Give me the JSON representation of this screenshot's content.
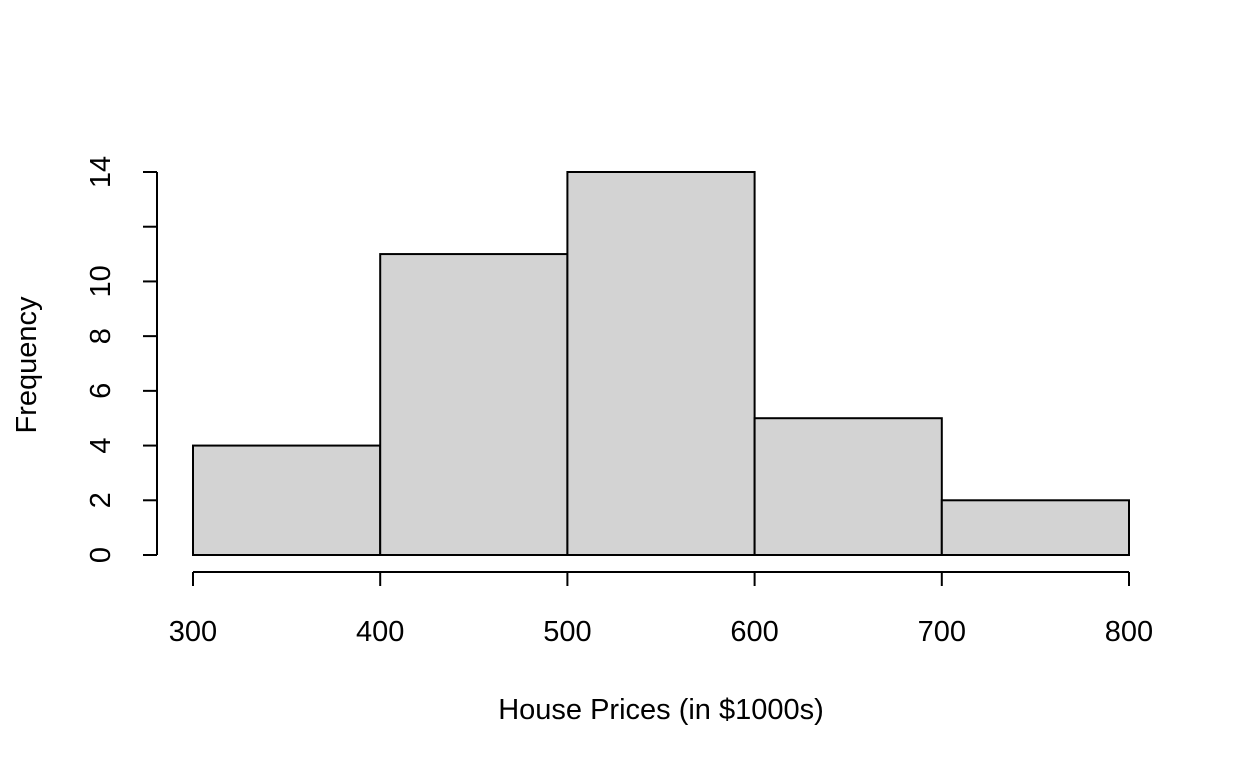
{
  "chart_data": {
    "type": "bar",
    "subtype": "histogram",
    "bins": [
      {
        "from": 300,
        "to": 400,
        "count": 4
      },
      {
        "from": 400,
        "to": 500,
        "count": 11
      },
      {
        "from": 500,
        "to": 600,
        "count": 14
      },
      {
        "from": 600,
        "to": 700,
        "count": 5
      },
      {
        "from": 700,
        "to": 800,
        "count": 2
      }
    ],
    "xlabel": "House Prices (in $1000s)",
    "ylabel": "Frequency",
    "xlim": [
      300,
      800
    ],
    "ylim": [
      0,
      14
    ],
    "x_ticks": [
      300,
      400,
      500,
      600,
      700,
      800
    ],
    "y_ticks": [
      0,
      2,
      4,
      6,
      8,
      10,
      12,
      14
    ],
    "y_tick_labels": [
      "0",
      "2",
      "4",
      "6",
      "8",
      "10",
      "",
      "14"
    ],
    "x_tick_labels": [
      "300",
      "400",
      "500",
      "600",
      "700",
      "800"
    ],
    "bar_color": "#d3d3d3",
    "grid": false,
    "legend": "none"
  }
}
